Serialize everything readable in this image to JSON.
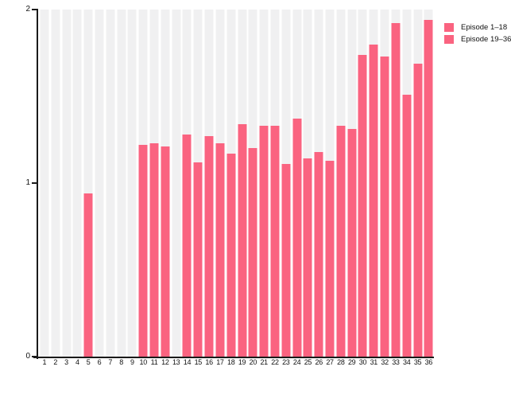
{
  "chart_data": {
    "type": "bar",
    "title": "",
    "xlabel": "",
    "ylabel": "",
    "categories": [
      "1",
      "2",
      "3",
      "4",
      "5",
      "6",
      "7",
      "8",
      "9",
      "10",
      "11",
      "12",
      "13",
      "14",
      "15",
      "16",
      "17",
      "18",
      "19",
      "20",
      "21",
      "22",
      "23",
      "24",
      "25",
      "26",
      "27",
      "28",
      "29",
      "30",
      "31",
      "32",
      "33",
      "34",
      "35",
      "36"
    ],
    "series": [
      {
        "name": "Episode 1–18",
        "color": "#fa6380",
        "values": [
          0,
          0,
          0,
          0,
          0.94,
          0,
          0,
          0,
          0,
          1.22,
          1.23,
          1.21,
          0,
          1.28,
          1.12,
          1.27,
          1.23,
          1.17,
          0,
          0,
          0,
          0,
          0,
          0,
          0,
          0,
          0,
          0,
          0,
          0,
          0,
          0,
          0,
          0,
          0,
          0
        ]
      },
      {
        "name": "Episode 19–36",
        "color": "#fa6380",
        "values": [
          0,
          0,
          0,
          0,
          0,
          0,
          0,
          0,
          0,
          0,
          0,
          0,
          0,
          0,
          0,
          0,
          0,
          0,
          1.34,
          1.2,
          1.33,
          1.33,
          1.11,
          1.37,
          1.14,
          1.18,
          1.13,
          1.33,
          1.31,
          1.74,
          1.8,
          1.73,
          1.92,
          1.51,
          1.69,
          1.94
        ]
      }
    ],
    "ylim": [
      0,
      2
    ],
    "yticks": [
      "0",
      "1",
      "2"
    ],
    "grid": false,
    "legend_position": "top-right",
    "track_color": "#f0f0f1",
    "axis_color": "#1a1a1a"
  }
}
